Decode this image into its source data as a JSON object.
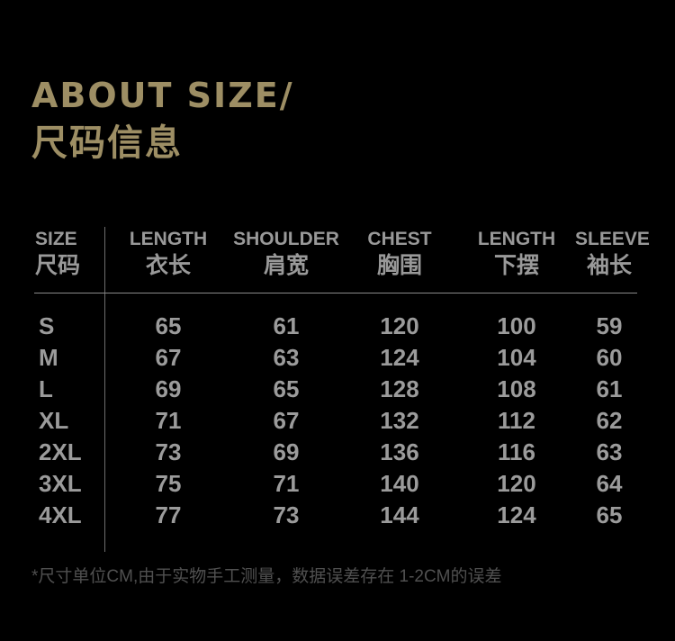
{
  "colors": {
    "background": "#000000",
    "accent_gold": "#9d8e64",
    "table_text": "#9b9b9b",
    "header_text": "#999999",
    "divider": "#6e6e6e",
    "header_rule": "#8a8a8a",
    "footnote_text": "#505050"
  },
  "title": {
    "en": "ABOUT SIZE/",
    "zh": "尺码信息"
  },
  "size_table": {
    "columns": [
      {
        "en": "SIZE",
        "zh": "尺码"
      },
      {
        "en": "LENGTH",
        "zh": "衣长"
      },
      {
        "en": "SHOULDER",
        "zh": "肩宽"
      },
      {
        "en": "CHEST",
        "zh": "胸围"
      },
      {
        "en": "LENGTH",
        "zh": "下摆"
      },
      {
        "en": "SLEEVE",
        "zh": "袖长"
      }
    ],
    "rows": [
      {
        "size": "S",
        "values": [
          "65",
          "61",
          "120",
          "100",
          "59"
        ]
      },
      {
        "size": "M",
        "values": [
          "67",
          "63",
          "124",
          "104",
          "60"
        ]
      },
      {
        "size": "L",
        "values": [
          "69",
          "65",
          "128",
          "108",
          "61"
        ]
      },
      {
        "size": "XL",
        "values": [
          "71",
          "67",
          "132",
          "112",
          "62"
        ]
      },
      {
        "size": "2XL",
        "values": [
          "73",
          "69",
          "136",
          "116",
          "63"
        ]
      },
      {
        "size": "3XL",
        "values": [
          "75",
          "71",
          "140",
          "120",
          "64"
        ]
      },
      {
        "size": "4XL",
        "values": [
          "77",
          "73",
          "144",
          "124",
          "65"
        ]
      }
    ]
  },
  "footnote": "*尺寸单位CM,由于实物手工测量，数据误差存在 1-2CM的误差",
  "chart_data": {
    "type": "table",
    "title": "ABOUT SIZE/ 尺码信息",
    "columns": [
      "SIZE 尺码",
      "LENGTH 衣长",
      "SHOULDER 肩宽",
      "CHEST 胸围",
      "LENGTH 下摆",
      "SLEEVE 袖长"
    ],
    "rows": [
      [
        "S",
        65,
        61,
        120,
        100,
        59
      ],
      [
        "M",
        67,
        63,
        124,
        104,
        60
      ],
      [
        "L",
        69,
        65,
        128,
        108,
        61
      ],
      [
        "XL",
        71,
        67,
        132,
        112,
        62
      ],
      [
        "2XL",
        73,
        69,
        136,
        116,
        63
      ],
      [
        "3XL",
        75,
        71,
        140,
        120,
        64
      ],
      [
        "4XL",
        77,
        73,
        144,
        124,
        65
      ]
    ],
    "note": "*尺寸单位CM,由于实物手工测量，数据误差存在 1-2CM的误差",
    "units": "CM",
    "layout": {
      "divider_after_first_column": true,
      "rule_below_header": true
    }
  }
}
